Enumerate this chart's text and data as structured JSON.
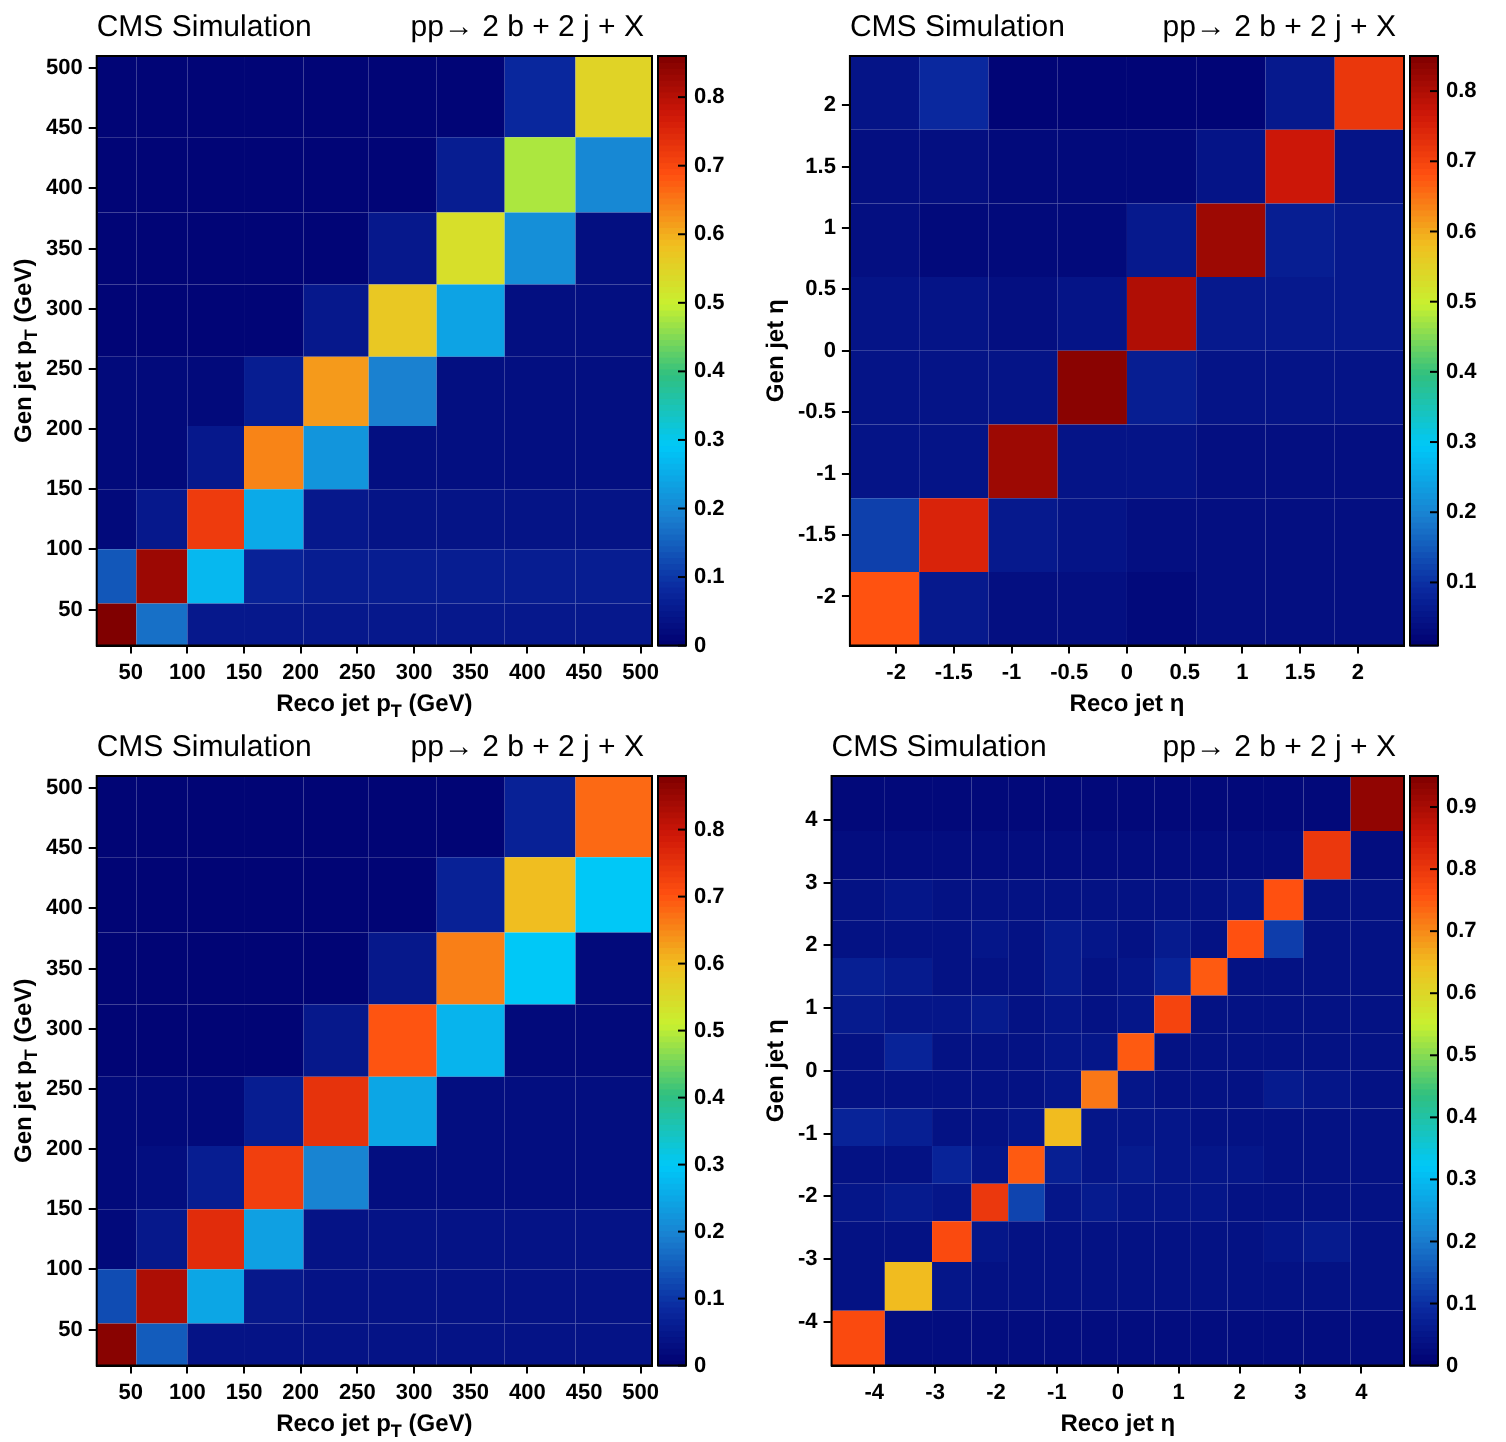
{
  "chart_data": [
    {
      "type": "heatmap",
      "title": "CMS Simulation",
      "subtitle": "pp→ 2 b + 2 j + X",
      "xlabel": "Reco jet p$_{T}$ (GeV)",
      "ylabel": "Gen jet p$_{T}$ (GeV)",
      "x": [
        35,
        75,
        125,
        175,
        230,
        290,
        350,
        410,
        475
      ],
      "y": [
        475,
        410,
        350,
        290,
        230,
        175,
        125,
        75,
        35
      ],
      "xlim": [
        20,
        510
      ],
      "ylim": [
        20,
        510
      ],
      "xticks": [
        50,
        100,
        150,
        200,
        250,
        300,
        350,
        400,
        450,
        500
      ],
      "yticks": [
        50,
        100,
        150,
        200,
        250,
        300,
        350,
        400,
        450,
        500
      ],
      "clim": [
        0,
        0.86
      ],
      "cticks": [
        0,
        0.1,
        0.2,
        0.3,
        0.4,
        0.5,
        0.6,
        0.7,
        0.8
      ],
      "cells": [
        [
          0.01,
          0.01,
          0.01,
          0.01,
          0.01,
          0.01,
          0.01,
          0.08,
          0.55
        ],
        [
          0.01,
          0.01,
          0.01,
          0.01,
          0.01,
          0.01,
          0.06,
          0.48,
          0.2
        ],
        [
          0.01,
          0.01,
          0.01,
          0.01,
          0.01,
          0.05,
          0.53,
          0.21,
          0.03
        ],
        [
          0.01,
          0.01,
          0.01,
          0.01,
          0.05,
          0.57,
          0.24,
          0.03,
          0.03
        ],
        [
          0.02,
          0.02,
          0.02,
          0.06,
          0.62,
          0.19,
          0.03,
          0.03,
          0.03
        ],
        [
          0.02,
          0.02,
          0.05,
          0.64,
          0.22,
          0.03,
          0.03,
          0.03,
          0.03
        ],
        [
          0.02,
          0.05,
          0.72,
          0.25,
          0.05,
          0.04,
          0.04,
          0.04,
          0.04
        ],
        [
          0.14,
          0.83,
          0.27,
          0.07,
          0.06,
          0.06,
          0.06,
          0.06,
          0.06
        ],
        [
          0.86,
          0.17,
          0.05,
          0.05,
          0.05,
          0.05,
          0.05,
          0.05,
          0.05
        ]
      ]
    },
    {
      "type": "heatmap",
      "title": "CMS Simulation",
      "subtitle": "pp→ 2 b + 2 j + X",
      "xlabel": "Reco jet η",
      "ylabel": "Gen jet η",
      "x": [
        -2.1,
        -1.5,
        -0.9,
        -0.3,
        0.3,
        0.9,
        1.5,
        2.1
      ],
      "y": [
        2.1,
        1.5,
        0.9,
        0.3,
        -0.3,
        -0.9,
        -1.5,
        -2.1
      ],
      "xlim": [
        -2.4,
        2.4
      ],
      "ylim": [
        -2.4,
        2.4
      ],
      "xticks": [
        -2,
        -1.5,
        -1,
        -0.5,
        0,
        0.5,
        1,
        1.5,
        2
      ],
      "yticks": [
        -2,
        -1.5,
        -1,
        -0.5,
        0,
        0.5,
        1,
        1.5,
        2
      ],
      "clim": [
        0.01,
        0.85
      ],
      "cticks": [
        0.1,
        0.2,
        0.3,
        0.4,
        0.5,
        0.6,
        0.7,
        0.8
      ],
      "cells": [
        [
          0.05,
          0.09,
          0.02,
          0.02,
          0.02,
          0.02,
          0.06,
          0.72
        ],
        [
          0.04,
          0.04,
          0.03,
          0.03,
          0.03,
          0.05,
          0.77,
          0.05
        ],
        [
          0.04,
          0.03,
          0.03,
          0.03,
          0.06,
          0.82,
          0.07,
          0.06
        ],
        [
          0.05,
          0.05,
          0.04,
          0.05,
          0.8,
          0.06,
          0.06,
          0.06
        ],
        [
          0.05,
          0.05,
          0.05,
          0.84,
          0.07,
          0.05,
          0.05,
          0.05
        ],
        [
          0.05,
          0.05,
          0.82,
          0.05,
          0.05,
          0.04,
          0.04,
          0.04
        ],
        [
          0.12,
          0.75,
          0.06,
          0.05,
          0.04,
          0.04,
          0.04,
          0.04
        ],
        [
          0.68,
          0.06,
          0.04,
          0.04,
          0.03,
          0.04,
          0.04,
          0.04
        ]
      ]
    },
    {
      "type": "heatmap",
      "title": "CMS Simulation",
      "subtitle": "pp→ 2 b + 2 j + X",
      "xlabel": "Reco jet p$_{T}$ (GeV)",
      "ylabel": "Gen jet p$_{T}$ (GeV)",
      "x": [
        35,
        75,
        125,
        175,
        230,
        290,
        350,
        410,
        475
      ],
      "y": [
        475,
        410,
        350,
        290,
        230,
        175,
        125,
        75,
        35
      ],
      "xlim": [
        20,
        510
      ],
      "ylim": [
        20,
        510
      ],
      "xticks": [
        50,
        100,
        150,
        200,
        250,
        300,
        350,
        400,
        450,
        500
      ],
      "yticks": [
        50,
        100,
        150,
        200,
        250,
        300,
        350,
        400,
        450,
        500
      ],
      "clim": [
        0,
        0.88
      ],
      "cticks": [
        0,
        0.1,
        0.2,
        0.3,
        0.4,
        0.5,
        0.6,
        0.7,
        0.8
      ],
      "cells": [
        [
          0.01,
          0.01,
          0.01,
          0.01,
          0.01,
          0.01,
          0.01,
          0.07,
          0.68
        ],
        [
          0.01,
          0.01,
          0.01,
          0.01,
          0.01,
          0.01,
          0.07,
          0.6,
          0.3
        ],
        [
          0.01,
          0.01,
          0.01,
          0.01,
          0.01,
          0.05,
          0.66,
          0.3,
          0.02
        ],
        [
          0.01,
          0.01,
          0.01,
          0.01,
          0.05,
          0.7,
          0.27,
          0.02,
          0.02
        ],
        [
          0.02,
          0.02,
          0.02,
          0.06,
          0.75,
          0.25,
          0.03,
          0.03,
          0.03
        ],
        [
          0.02,
          0.03,
          0.06,
          0.73,
          0.2,
          0.03,
          0.03,
          0.03,
          0.03
        ],
        [
          0.02,
          0.05,
          0.76,
          0.24,
          0.04,
          0.04,
          0.04,
          0.04,
          0.04
        ],
        [
          0.13,
          0.83,
          0.25,
          0.05,
          0.04,
          0.04,
          0.04,
          0.04,
          0.04
        ],
        [
          0.87,
          0.15,
          0.04,
          0.04,
          0.04,
          0.04,
          0.04,
          0.04,
          0.04
        ]
      ]
    },
    {
      "type": "heatmap",
      "title": "CMS Simulation",
      "subtitle": "pp→ 2 b + 2 j + X",
      "xlabel": "Reco jet η",
      "ylabel": "Gen jet η",
      "x": [
        -4.25,
        -3.4,
        -2.7,
        -2.1,
        -1.5,
        -0.9,
        -0.3,
        0.3,
        0.9,
        1.5,
        2.1,
        2.7,
        3.4,
        4.25
      ],
      "y": [
        4.25,
        3.4,
        2.7,
        2.1,
        1.5,
        0.9,
        0.3,
        -0.3,
        -0.9,
        -1.5,
        -2.1,
        -2.7,
        -3.4,
        -4.25
      ],
      "xlim": [
        -4.7,
        4.7
      ],
      "ylim": [
        -4.7,
        4.7
      ],
      "xticks": [
        -4,
        -3,
        -2,
        -1,
        0,
        1,
        2,
        3,
        4
      ],
      "yticks": [
        -4,
        -3,
        -2,
        -1,
        0,
        1,
        2,
        3,
        4
      ],
      "clim": [
        0,
        0.95
      ],
      "cticks": [
        0,
        0.1,
        0.2,
        0.3,
        0.4,
        0.5,
        0.6,
        0.7,
        0.8,
        0.9
      ],
      "cells": [
        [
          0.02,
          0.02,
          0.02,
          0.02,
          0.02,
          0.02,
          0.02,
          0.02,
          0.02,
          0.02,
          0.02,
          0.02,
          0.02,
          0.93
        ],
        [
          0.03,
          0.03,
          0.03,
          0.03,
          0.03,
          0.03,
          0.03,
          0.03,
          0.03,
          0.03,
          0.03,
          0.03,
          0.8,
          0.03
        ],
        [
          0.04,
          0.05,
          0.04,
          0.04,
          0.04,
          0.04,
          0.04,
          0.04,
          0.04,
          0.04,
          0.05,
          0.76,
          0.04,
          0.04
        ],
        [
          0.04,
          0.04,
          0.04,
          0.05,
          0.04,
          0.06,
          0.05,
          0.04,
          0.06,
          0.04,
          0.76,
          0.12,
          0.04,
          0.04
        ],
        [
          0.07,
          0.06,
          0.04,
          0.04,
          0.04,
          0.06,
          0.04,
          0.05,
          0.08,
          0.75,
          0.04,
          0.04,
          0.04,
          0.04
        ],
        [
          0.06,
          0.05,
          0.05,
          0.06,
          0.04,
          0.05,
          0.04,
          0.05,
          0.78,
          0.04,
          0.04,
          0.04,
          0.04,
          0.04
        ],
        [
          0.04,
          0.08,
          0.04,
          0.04,
          0.04,
          0.05,
          0.05,
          0.75,
          0.04,
          0.04,
          0.04,
          0.04,
          0.04,
          0.04
        ],
        [
          0.04,
          0.04,
          0.04,
          0.04,
          0.04,
          0.05,
          0.72,
          0.05,
          0.04,
          0.04,
          0.04,
          0.06,
          0.05,
          0.04
        ],
        [
          0.08,
          0.07,
          0.04,
          0.04,
          0.05,
          0.65,
          0.05,
          0.05,
          0.05,
          0.04,
          0.04,
          0.04,
          0.04,
          0.04
        ],
        [
          0.04,
          0.04,
          0.08,
          0.05,
          0.75,
          0.07,
          0.05,
          0.06,
          0.05,
          0.05,
          0.05,
          0.04,
          0.04,
          0.04
        ],
        [
          0.05,
          0.06,
          0.05,
          0.8,
          0.13,
          0.05,
          0.06,
          0.05,
          0.05,
          0.05,
          0.04,
          0.04,
          0.04,
          0.04
        ],
        [
          0.04,
          0.04,
          0.77,
          0.05,
          0.04,
          0.04,
          0.04,
          0.04,
          0.04,
          0.04,
          0.04,
          0.05,
          0.06,
          0.04
        ],
        [
          0.04,
          0.65,
          0.05,
          0.04,
          0.04,
          0.04,
          0.04,
          0.04,
          0.04,
          0.04,
          0.04,
          0.04,
          0.04,
          0.04
        ],
        [
          0.77,
          0.03,
          0.03,
          0.03,
          0.03,
          0.03,
          0.03,
          0.03,
          0.03,
          0.03,
          0.03,
          0.03,
          0.03,
          0.03
        ]
      ]
    }
  ]
}
